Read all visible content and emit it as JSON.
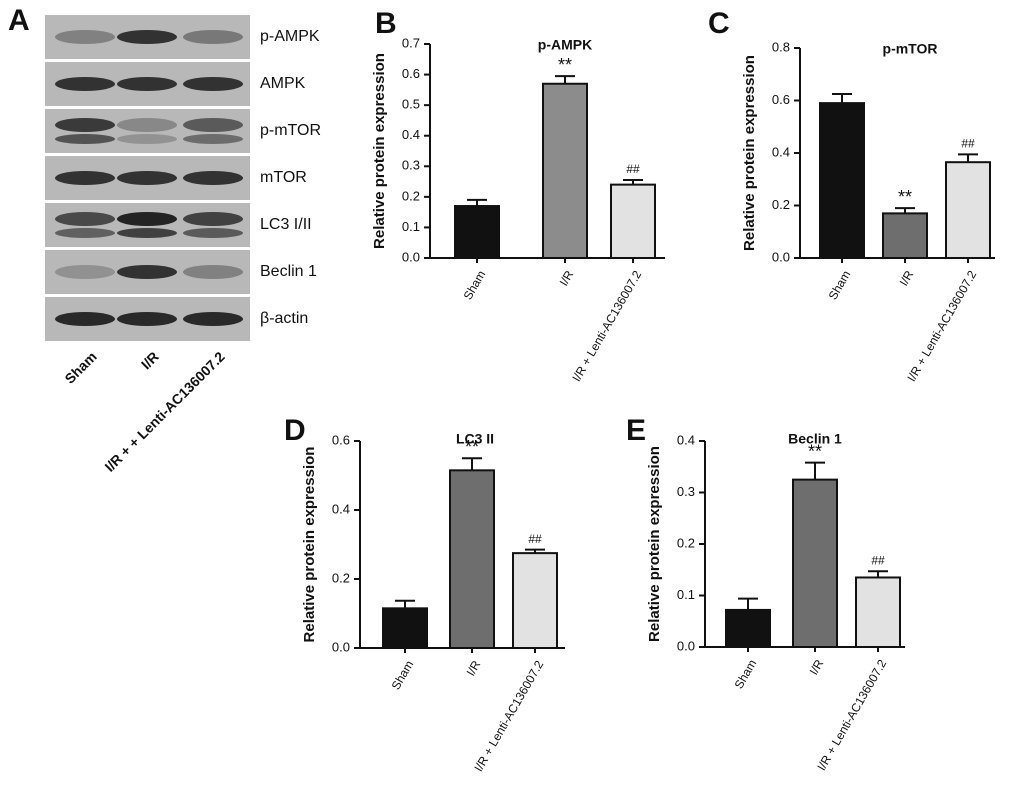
{
  "blot": {
    "panel_label": "A",
    "proteins": [
      "p-AMPK",
      "AMPK",
      "p-mTOR",
      "mTOR",
      "LC3 I/II",
      "Beclin 1",
      "β-actin"
    ],
    "lanes": [
      "Sham",
      "I/R",
      "I/R + + Lenti-AC136007.2"
    ]
  },
  "chart_data": [
    {
      "type": "bar",
      "panel_label": "B",
      "title": "p-AMPK",
      "y_label": "Relative protein expression",
      "categories": [
        "Sham",
        "I/R",
        "I/R + Lenti-AC136007.2"
      ],
      "values": [
        0.17,
        0.57,
        0.24
      ],
      "errors": [
        0.02,
        0.025,
        0.015
      ],
      "colors": [
        "#111111",
        "#8c8c8c",
        "#e2e2e2"
      ],
      "annotations": [
        null,
        "**",
        "##"
      ],
      "ylim": [
        0,
        0.7
      ],
      "yticks": [
        {
          "value": 0,
          "label": "0.0"
        },
        0.1,
        0.2,
        0.3,
        0.4,
        0.5,
        0.6,
        0.7
      ]
    },
    {
      "type": "bar",
      "panel_label": "C",
      "title": "p-mTOR",
      "y_label": "Relative protein expression",
      "categories": [
        "Sham",
        "I/R",
        "I/R + Lenti-AC136007.2"
      ],
      "values": [
        0.59,
        0.17,
        0.365
      ],
      "errors": [
        0.035,
        0.02,
        0.03
      ],
      "colors": [
        "#111111",
        "#6e6e6e",
        "#e2e2e2"
      ],
      "annotations": [
        null,
        "**",
        "##"
      ],
      "ylim": [
        0,
        0.8
      ],
      "yticks": [
        {
          "value": 0,
          "label": "0.0"
        },
        0.2,
        0.4,
        0.6,
        0.8
      ]
    },
    {
      "type": "bar",
      "panel_label": "D",
      "title": "LC3 II",
      "y_label": "Relative protein expression",
      "categories": [
        "Sham",
        "I/R",
        "I/R + Lenti-AC136007.2"
      ],
      "values": [
        0.115,
        0.515,
        0.275
      ],
      "errors": [
        0.022,
        0.035,
        0.01
      ],
      "colors": [
        "#111111",
        "#6e6e6e",
        "#e2e2e2"
      ],
      "annotations": [
        null,
        "**",
        "##"
      ],
      "ylim": [
        0,
        0.6
      ],
      "yticks": [
        {
          "value": 0,
          "label": "0.0"
        },
        0.2,
        0.4,
        0.6
      ]
    },
    {
      "type": "bar",
      "panel_label": "E",
      "title": "Beclin 1",
      "y_label": "Relative protein expression",
      "categories": [
        "Sham",
        "I/R",
        "I/R + Lenti-AC136007.2"
      ],
      "values": [
        0.072,
        0.325,
        0.135
      ],
      "errors": [
        0.022,
        0.033,
        0.012
      ],
      "colors": [
        "#111111",
        "#6e6e6e",
        "#e2e2e2"
      ],
      "annotations": [
        null,
        "**",
        "##"
      ],
      "ylim": [
        0,
        0.4
      ],
      "yticks": [
        {
          "value": 0,
          "label": "0.0"
        },
        0.1,
        0.2,
        0.3,
        0.4
      ]
    }
  ]
}
